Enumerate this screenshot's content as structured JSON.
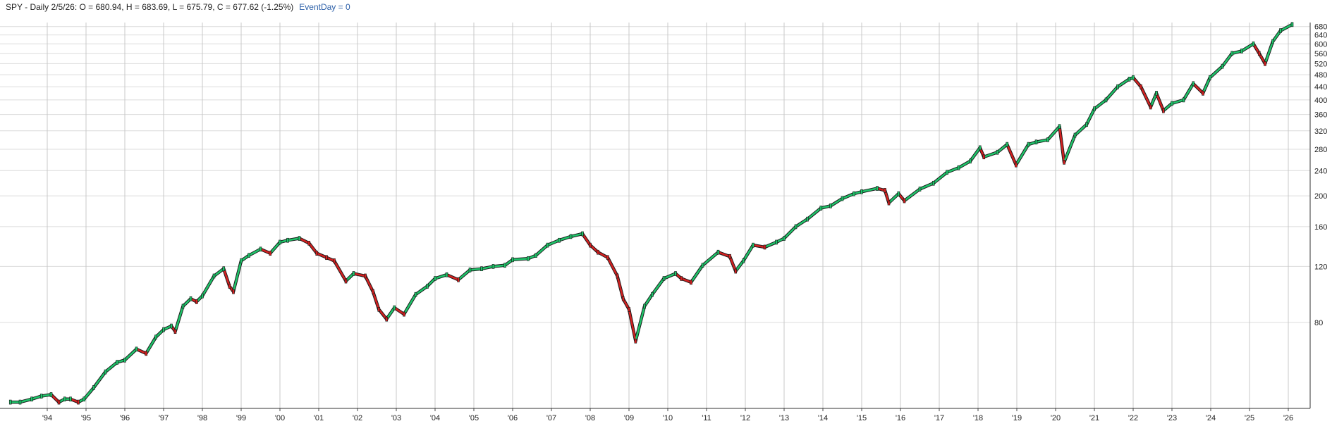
{
  "header": {
    "symbol_line": "SPY - Daily 2/5/26:  O = 680.94,  H = 683.69,  L = 675.79,  C = 677.62 (-1.25%)",
    "event_label": "EventDay = 0"
  },
  "chart_data": {
    "type": "candlestick-line",
    "title": "",
    "xlabel": "",
    "ylabel": "",
    "y_scale": "log",
    "ylim": [
      43,
      700
    ],
    "xlim": [
      1993.0,
      2026.2
    ],
    "grid": true,
    "ohlc_last": {
      "date": "2/5/26",
      "open": 680.94,
      "high": 683.69,
      "low": 675.79,
      "close": 677.62,
      "change_pct": -1.25
    },
    "y_ticks": [
      80,
      120,
      160,
      200,
      240,
      280,
      320,
      360,
      400,
      440,
      480,
      520,
      560,
      600,
      640,
      680
    ],
    "x_ticks": [
      {
        "label": "'94",
        "x": 1994
      },
      {
        "label": "'95",
        "x": 1995
      },
      {
        "label": "'96",
        "x": 1996
      },
      {
        "label": "'97",
        "x": 1997
      },
      {
        "label": "'98",
        "x": 1998
      },
      {
        "label": "'99",
        "x": 1999
      },
      {
        "label": "'00",
        "x": 2000
      },
      {
        "label": "'01",
        "x": 2001
      },
      {
        "label": "'02",
        "x": 2002
      },
      {
        "label": "'03",
        "x": 2003
      },
      {
        "label": "'04",
        "x": 2004
      },
      {
        "label": "'05",
        "x": 2005
      },
      {
        "label": "'06",
        "x": 2006
      },
      {
        "label": "'07",
        "x": 2007
      },
      {
        "label": "'08",
        "x": 2008
      },
      {
        "label": "'09",
        "x": 2009
      },
      {
        "label": "'10",
        "x": 2010
      },
      {
        "label": "'11",
        "x": 2011
      },
      {
        "label": "'12",
        "x": 2012
      },
      {
        "label": "'13",
        "x": 2013
      },
      {
        "label": "'14",
        "x": 2014
      },
      {
        "label": "'15",
        "x": 2015
      },
      {
        "label": "'16",
        "x": 2016
      },
      {
        "label": "'17",
        "x": 2017
      },
      {
        "label": "'18",
        "x": 2018
      },
      {
        "label": "'19",
        "x": 2019
      },
      {
        "label": "'20",
        "x": 2020
      },
      {
        "label": "'21",
        "x": 2021
      },
      {
        "label": "'22",
        "x": 2022
      },
      {
        "label": "'23",
        "x": 2023
      },
      {
        "label": "'24",
        "x": 2024
      },
      {
        "label": "'25",
        "x": 2025
      },
      {
        "label": "'26",
        "x": 2026
      }
    ],
    "series": [
      {
        "x": [
          1993.05,
          1993.3,
          1993.6,
          1993.85,
          1994.1,
          1994.3,
          1994.45,
          1994.6,
          1994.8,
          1994.95,
          1995.2,
          1995.5,
          1995.8,
          1996.0,
          1996.3,
          1996.55,
          1996.8,
          1997.0,
          1997.2,
          1997.3,
          1997.5,
          1997.7,
          1997.85,
          1998.0,
          1998.3,
          1998.55,
          1998.7,
          1998.8,
          1999.0,
          1999.2,
          1999.5,
          1999.75,
          2000.0,
          2000.2,
          2000.5,
          2000.75,
          2000.95,
          2001.2,
          2001.4,
          2001.7,
          2001.9,
          2002.2,
          2002.4,
          2002.55,
          2002.75,
          2002.95,
          2003.2,
          2003.5,
          2003.8,
          2004.0,
          2004.3,
          2004.6,
          2004.9,
          2005.2,
          2005.5,
          2005.8,
          2006.0,
          2006.4,
          2006.6,
          2006.9,
          2007.2,
          2007.5,
          2007.8,
          2008.0,
          2008.2,
          2008.45,
          2008.7,
          2008.85,
          2009.0,
          2009.17,
          2009.4,
          2009.6,
          2009.9,
          2010.2,
          2010.35,
          2010.6,
          2010.9,
          2011.3,
          2011.6,
          2011.75,
          2011.95,
          2012.2,
          2012.5,
          2012.8,
          2013.0,
          2013.3,
          2013.6,
          2013.95,
          2014.2,
          2014.5,
          2014.8,
          2015.0,
          2015.4,
          2015.6,
          2015.7,
          2015.95,
          2016.1,
          2016.5,
          2016.85,
          2017.2,
          2017.5,
          2017.8,
          2018.05,
          2018.15,
          2018.5,
          2018.75,
          2018.98,
          2019.3,
          2019.5,
          2019.8,
          2020.1,
          2020.22,
          2020.5,
          2020.8,
          2021.0,
          2021.3,
          2021.6,
          2021.9,
          2022.0,
          2022.2,
          2022.45,
          2022.6,
          2022.78,
          2023.0,
          2023.3,
          2023.55,
          2023.8,
          2023.98,
          2024.3,
          2024.55,
          2024.8,
          2025.1,
          2025.25,
          2025.4,
          2025.6,
          2025.8,
          2026.1
        ],
        "y": [
          45,
          45,
          46,
          47,
          47.5,
          45,
          46,
          46,
          45,
          46,
          50,
          56,
          60,
          61,
          66,
          64,
          72,
          76,
          78,
          75,
          90,
          95,
          93,
          97,
          112,
          118,
          104,
          100,
          125,
          130,
          136,
          132,
          143,
          145,
          147,
          142,
          132,
          128,
          125,
          108,
          114,
          112,
          100,
          88,
          82,
          89,
          85,
          98,
          104,
          110,
          113,
          109,
          117,
          118,
          120,
          121,
          126,
          127,
          130,
          140,
          145,
          149,
          152,
          140,
          133,
          128,
          112,
          95,
          88,
          70,
          90,
          98,
          110,
          114,
          110,
          107,
          121,
          133,
          129,
          116,
          125,
          140,
          138,
          143,
          147,
          160,
          169,
          183,
          186,
          196,
          203,
          206,
          211,
          208,
          190,
          203,
          193,
          210,
          219,
          237,
          245,
          257,
          283,
          265,
          274,
          290,
          250,
          290,
          295,
          300,
          330,
          255,
          310,
          335,
          375,
          400,
          440,
          465,
          470,
          440,
          380,
          420,
          370,
          390,
          400,
          450,
          420,
          470,
          510,
          560,
          570,
          600,
          560,
          520,
          610,
          660,
          690
        ]
      }
    ]
  }
}
